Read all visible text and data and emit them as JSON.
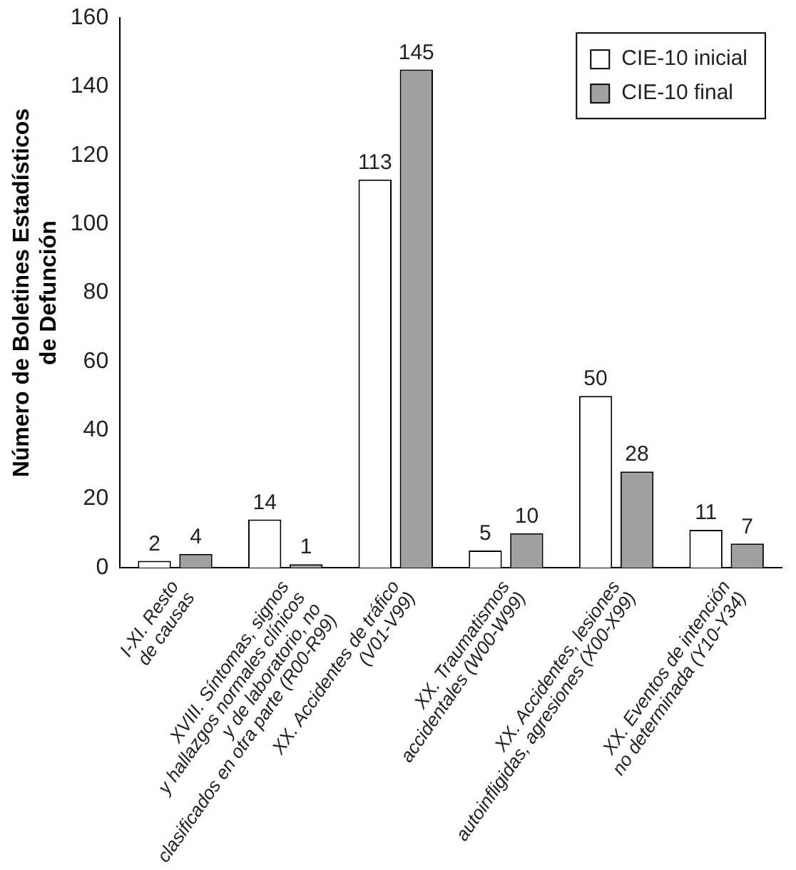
{
  "chart_data": {
    "type": "bar",
    "ylabel": "Número de Boletines Estadísticos\nde Defunción",
    "categories": [
      "I-XI. Resto\nde causas",
      "XVIII. Síntomas, signos\ny hallazgos normales clínicos\ny de laboratorio, no\nclasificados en otra parte (R00-R99)",
      "XX. Accidentes de tráfico\n(V01-V99)",
      "XX. Traumatismos\naccidentales (W00-W99)",
      "XX. Accidentes, lesiones\nautoinfligidas, agresiones (X00-X99)",
      "XX. Eventos de intención\nno determinada (Y10-Y34)"
    ],
    "series": [
      {
        "name": "CIE-10 inicial",
        "color": "#ffffff",
        "values": [
          2,
          14,
          113,
          5,
          50,
          11
        ]
      },
      {
        "name": "CIE-10 final",
        "color": "#a0a0a0",
        "values": [
          4,
          1,
          145,
          10,
          28,
          7
        ]
      }
    ],
    "ylim": [
      0,
      160
    ],
    "yticks": [
      0,
      20,
      40,
      60,
      80,
      100,
      120,
      140,
      160
    ],
    "grid": false,
    "legend": "top right",
    "data_labels": true
  }
}
